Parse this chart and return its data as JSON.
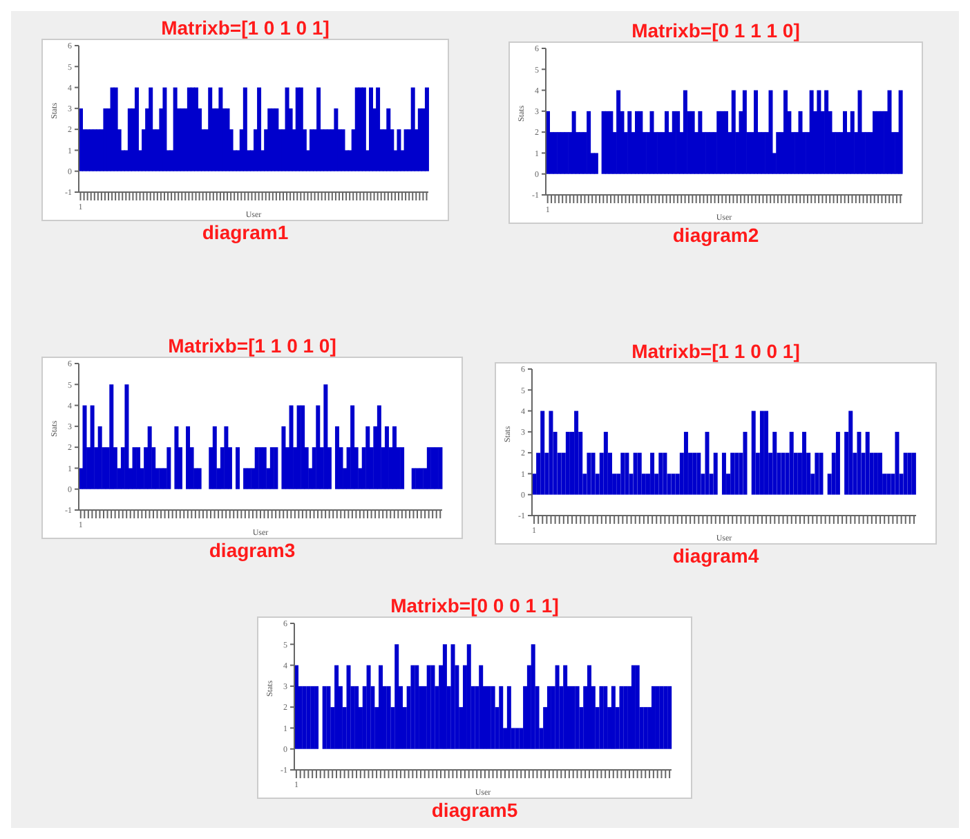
{
  "chart_data": [
    {
      "type": "bar",
      "title": "Matrixb=[1 0 1 0 1]",
      "xlabel": "User",
      "ylabel": "Stats",
      "annotations": [
        "diagram1"
      ],
      "color": "#0000cc",
      "ylim": [
        -1,
        6
      ],
      "yticks": [
        -1,
        0,
        1,
        2,
        3,
        4,
        5,
        6
      ],
      "categories": [
        "1",
        null,
        null,
        null,
        null,
        null,
        null,
        null,
        null,
        null,
        null,
        null,
        null,
        null,
        null,
        null,
        null,
        null,
        null,
        null,
        null,
        null,
        null,
        null,
        null,
        null,
        null,
        null,
        null,
        null,
        null,
        null,
        null,
        null,
        null,
        null,
        null,
        null,
        null,
        null,
        null,
        null,
        null,
        null,
        null,
        null,
        null,
        null,
        null,
        null,
        null,
        null,
        null,
        null,
        null,
        null,
        null,
        null,
        null,
        null,
        null,
        null,
        null,
        null,
        null,
        null,
        null,
        null,
        null,
        null,
        null,
        null,
        null,
        null,
        null,
        null,
        null,
        null,
        null,
        null,
        null,
        null,
        null,
        null,
        null,
        null,
        null,
        null,
        null,
        null,
        null,
        null,
        null,
        null,
        null,
        null,
        null,
        null,
        null,
        null
      ],
      "values": [
        3,
        2,
        2,
        2,
        2,
        2,
        2,
        3,
        3,
        4,
        4,
        2,
        1,
        1,
        3,
        3,
        4,
        1,
        2,
        3,
        4,
        2,
        2,
        3,
        4,
        1,
        1,
        4,
        3,
        3,
        3,
        4,
        4,
        4,
        3,
        2,
        2,
        4,
        3,
        3,
        4,
        3,
        3,
        2,
        1,
        1,
        2,
        4,
        1,
        1,
        2,
        4,
        1,
        2,
        3,
        3,
        3,
        2,
        2,
        4,
        3,
        2,
        4,
        4,
        2,
        1,
        2,
        2,
        4,
        2,
        2,
        2,
        2,
        3,
        2,
        2,
        1,
        1,
        2,
        4,
        4,
        4,
        1,
        4,
        3,
        4,
        2,
        2,
        3,
        2,
        1,
        2,
        1,
        2,
        2,
        4,
        2,
        3,
        3,
        4
      ]
    },
    {
      "type": "bar",
      "title": "Matrixb=[0 1 1 1 0]",
      "xlabel": "User",
      "ylabel": "Stats",
      "annotations": [
        "diagram2"
      ],
      "color": "#0000cc",
      "ylim": [
        -1,
        6
      ],
      "yticks": [
        -1,
        0,
        1,
        2,
        3,
        4,
        5,
        6
      ],
      "categories": [
        "1",
        null,
        null,
        null,
        null,
        null,
        null,
        null,
        null,
        null,
        null,
        null,
        null,
        null,
        null,
        null,
        null,
        null,
        null,
        null,
        null,
        null,
        null,
        null,
        null,
        null,
        null,
        null,
        null,
        null,
        null,
        null,
        null,
        null,
        null,
        null,
        null,
        null,
        null,
        null,
        null,
        null,
        null,
        null,
        null,
        null,
        null,
        null,
        null,
        null,
        null,
        null,
        null,
        null,
        null,
        null,
        null,
        null,
        null,
        null,
        null,
        null,
        null,
        null,
        null,
        null,
        null,
        null,
        null,
        null,
        null,
        null,
        null,
        null,
        null,
        null,
        null,
        null,
        null,
        null,
        null,
        null,
        null,
        null,
        null,
        null,
        null,
        null,
        null,
        null,
        null,
        null,
        null,
        null,
        null,
        null
      ],
      "values": [
        3,
        2,
        2,
        2,
        2,
        2,
        2,
        3,
        2,
        2,
        2,
        3,
        1,
        1,
        null,
        3,
        3,
        3,
        2,
        4,
        3,
        2,
        3,
        2,
        3,
        3,
        2,
        2,
        3,
        2,
        2,
        2,
        3,
        2,
        3,
        3,
        2,
        4,
        3,
        3,
        2,
        3,
        2,
        2,
        2,
        2,
        3,
        3,
        3,
        2,
        4,
        2,
        3,
        4,
        2,
        2,
        4,
        2,
        2,
        2,
        4,
        1,
        2,
        2,
        4,
        3,
        2,
        2,
        3,
        2,
        2,
        4,
        3,
        4,
        3,
        4,
        3,
        2,
        2,
        2,
        3,
        2,
        3,
        2,
        4,
        2,
        2,
        2,
        3,
        3,
        3,
        3,
        4,
        2,
        2,
        4
      ]
    },
    {
      "type": "bar",
      "title": "Matrixb=[1 1 0 1 0]",
      "xlabel": "User",
      "ylabel": "Stats",
      "annotations": [
        "diagram3"
      ],
      "color": "#0000cc",
      "ylim": [
        -1,
        6
      ],
      "yticks": [
        -1,
        0,
        1,
        2,
        3,
        4,
        5,
        6
      ],
      "categories": [
        "1",
        null,
        null,
        null,
        null,
        null,
        null,
        null,
        null,
        null,
        null,
        null,
        null,
        null,
        null,
        null,
        null,
        null,
        null,
        null,
        null,
        null,
        null,
        null,
        null,
        null,
        null,
        null,
        null,
        null,
        null,
        null,
        null,
        null,
        null,
        null,
        null,
        null,
        null,
        null,
        null,
        null,
        null,
        null,
        null,
        null,
        null,
        null,
        null,
        null,
        null,
        null,
        null,
        null,
        null,
        null,
        null,
        null,
        null,
        null,
        null,
        null,
        null,
        null,
        null,
        null,
        null,
        null,
        null,
        null,
        null,
        null,
        null,
        null,
        null,
        null,
        null,
        null,
        null,
        null,
        null,
        null,
        null,
        null,
        null,
        null,
        null,
        null,
        null,
        null,
        null,
        null,
        null,
        null,
        null
      ],
      "values": [
        1,
        4,
        2,
        4,
        2,
        3,
        2,
        2,
        5,
        2,
        1,
        2,
        5,
        1,
        2,
        2,
        1,
        2,
        3,
        2,
        1,
        1,
        1,
        2,
        null,
        3,
        2,
        null,
        3,
        2,
        1,
        1,
        null,
        null,
        2,
        3,
        1,
        2,
        3,
        2,
        null,
        2,
        null,
        1,
        1,
        1,
        2,
        2,
        2,
        1,
        2,
        2,
        null,
        3,
        2,
        4,
        2,
        4,
        4,
        2,
        1,
        2,
        4,
        2,
        5,
        2,
        null,
        3,
        2,
        1,
        2,
        4,
        2,
        1,
        2,
        3,
        2,
        3,
        4,
        2,
        3,
        2,
        3,
        2,
        2,
        null,
        null,
        1,
        1,
        1,
        1,
        2,
        2,
        2,
        2
      ]
    },
    {
      "type": "bar",
      "title": "Matrixb=[1 1 0 0 1]",
      "xlabel": "User",
      "ylabel": "Stats",
      "annotations": [
        "diagram4"
      ],
      "color": "#0000cc",
      "ylim": [
        -1,
        6
      ],
      "yticks": [
        -1,
        0,
        1,
        2,
        3,
        4,
        5,
        6
      ],
      "categories": [
        "1",
        null,
        null,
        null,
        null,
        null,
        null,
        null,
        null,
        null,
        null,
        null,
        null,
        null,
        null,
        null,
        null,
        null,
        null,
        null,
        null,
        null,
        null,
        null,
        null,
        null,
        null,
        null,
        null,
        null,
        null,
        null,
        null,
        null,
        null,
        null,
        null,
        null,
        null,
        null,
        null,
        null,
        null,
        null,
        null,
        null,
        null,
        null,
        null,
        null,
        null,
        null,
        null,
        null,
        null,
        null,
        null,
        null,
        null,
        null,
        null,
        null,
        null,
        null,
        null,
        null,
        null,
        null,
        null,
        null,
        null,
        null,
        null,
        null,
        null,
        null,
        null,
        null,
        null,
        null,
        null,
        null,
        null,
        null,
        null,
        null,
        null,
        null,
        null,
        null,
        null
      ],
      "values": [
        1,
        2,
        4,
        2,
        4,
        3,
        2,
        2,
        3,
        3,
        4,
        3,
        1,
        2,
        2,
        1,
        2,
        3,
        2,
        1,
        1,
        2,
        2,
        1,
        2,
        2,
        1,
        1,
        2,
        1,
        2,
        2,
        1,
        1,
        1,
        2,
        3,
        2,
        2,
        2,
        1,
        3,
        1,
        2,
        null,
        2,
        1,
        2,
        2,
        2,
        3,
        null,
        4,
        2,
        4,
        4,
        2,
        3,
        2,
        2,
        2,
        3,
        2,
        2,
        3,
        2,
        1,
        2,
        2,
        null,
        1,
        2,
        3,
        null,
        3,
        4,
        2,
        3,
        2,
        3,
        2,
        2,
        2,
        1,
        1,
        1,
        3,
        1,
        2,
        2,
        2
      ]
    },
    {
      "type": "bar",
      "title": "Matrixb=[0 0 0 1 1]",
      "xlabel": "User",
      "ylabel": "Stats",
      "annotations": [
        "diagram5"
      ],
      "color": "#0000cc",
      "ylim": [
        -1,
        6
      ],
      "yticks": [
        -1,
        0,
        1,
        2,
        3,
        4,
        5,
        6
      ],
      "categories": [
        "1",
        null,
        null,
        null,
        null,
        null,
        null,
        null,
        null,
        null,
        null,
        null,
        null,
        null,
        null,
        null,
        null,
        null,
        null,
        null,
        null,
        null,
        null,
        null,
        null,
        null,
        null,
        null,
        null,
        null,
        null,
        null,
        null,
        null,
        null,
        null,
        null,
        null,
        null,
        null,
        null,
        null,
        null,
        null,
        null,
        null,
        null,
        null,
        null,
        null,
        null,
        null,
        null,
        null,
        null,
        null,
        null,
        null,
        null,
        null,
        null,
        null,
        null,
        null,
        null,
        null,
        null,
        null,
        null,
        null,
        null,
        null,
        null,
        null,
        null,
        null,
        null,
        null,
        null,
        null,
        null,
        null,
        null,
        null,
        null,
        null,
        null,
        null,
        null,
        null,
        null,
        null,
        null,
        null
      ],
      "values": [
        4,
        3,
        3,
        3,
        3,
        3,
        null,
        3,
        3,
        2,
        4,
        3,
        2,
        4,
        3,
        3,
        2,
        3,
        4,
        3,
        2,
        4,
        3,
        3,
        2,
        5,
        3,
        2,
        3,
        4,
        4,
        3,
        3,
        4,
        4,
        3,
        4,
        5,
        3,
        5,
        4,
        2,
        4,
        5,
        3,
        3,
        4,
        3,
        3,
        3,
        2,
        3,
        1,
        3,
        1,
        1,
        1,
        3,
        4,
        5,
        3,
        1,
        2,
        3,
        3,
        4,
        3,
        4,
        3,
        3,
        3,
        2,
        3,
        4,
        3,
        2,
        3,
        3,
        2,
        3,
        2,
        3,
        3,
        3,
        4,
        4,
        2,
        2,
        2,
        3,
        3,
        3,
        3,
        3
      ]
    }
  ]
}
